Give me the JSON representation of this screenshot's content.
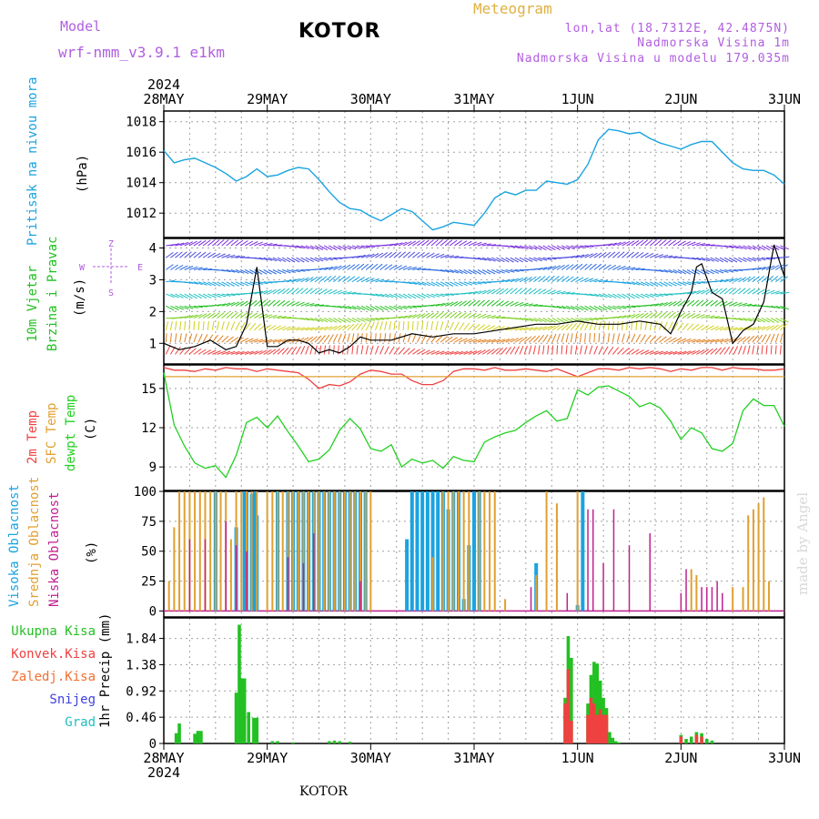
{
  "header": {
    "model_label": "Model",
    "model_name": "wrf-nmm_v3.9.1 e1km",
    "station": "KOTOR",
    "meteogram": "Meteogram",
    "lonlat": "lon,lat (18.7312E, 42.4875N)",
    "elevation": "Nadmorska Visina 1m",
    "model_elevation": "Nadmorska Visina u modelu 179.035m"
  },
  "footer": {
    "station": "KOTOR",
    "credit": "made by Angel"
  },
  "time_axis": {
    "top_year": "2024",
    "bottom_year": "2024",
    "day_labels": [
      "28MAY",
      "29MAY",
      "30MAY",
      "31MAY",
      "1JUN",
      "2JUN",
      "3JUN"
    ]
  },
  "panels": {
    "pressure": {
      "label1": "Pritisak na nivou mora",
      "unit": "(hPa)",
      "ticks": [
        "1012",
        "1014",
        "1016",
        "1018"
      ]
    },
    "wind": {
      "label1": "10m Vjetar",
      "label2": "Brzina i Pravac",
      "unit": "(m/s)",
      "ticks": [
        "1",
        "2",
        "3",
        "4"
      ],
      "compass": {
        "n": "Z",
        "s": "S",
        "w": "W",
        "e": "E"
      }
    },
    "temp": {
      "label1": "2m Temp",
      "label2": "SFC Temp",
      "label3": "dewpt Temp",
      "unit": "(C)",
      "ticks": [
        "9",
        "12",
        "15"
      ]
    },
    "cloud": {
      "label1": "Visoka Oblacnost",
      "label2": "Srednja Oblacnost",
      "label3": "Niska Oblacnost",
      "unit": "(%)",
      "ticks": [
        "0",
        "25",
        "50",
        "75",
        "100"
      ]
    },
    "precip": {
      "legend": [
        "Ukupna Kisa",
        "Konvek.Kisa",
        "Zaledj.Kisa",
        "Snijeg",
        "Grad"
      ],
      "unit": "1hr Precip (mm)",
      "ticks": [
        "0",
        "0.46",
        "0.92",
        "1.38",
        "1.84"
      ]
    }
  },
  "colors": {
    "model": "#b05ee0",
    "meteogram": "#e0b040",
    "info": "#b05ee0",
    "pressure": "#1aa3e0",
    "wind_speed": "#000000",
    "wind_label": "#22c022",
    "temp2m": "#f04040",
    "sfc_temp": "#e0a030",
    "dewpt": "#22d022",
    "cloud_high": "#1aa3e0",
    "cloud_mid": "#e0a030",
    "cloud_low": "#c02090",
    "precip_total": "#22c022",
    "precip_conv": "#f04040",
    "precip_frozen": "#f07030",
    "precip_snow": "#4040e0",
    "precip_hail": "#20c0c0"
  },
  "chart_data": [
    {
      "type": "line",
      "name": "pressure",
      "x_days": [
        0,
        0.1,
        0.2,
        0.3,
        0.4,
        0.5,
        0.6,
        0.7,
        0.8,
        0.9,
        1.0,
        1.1,
        1.2,
        1.3,
        1.4,
        1.5,
        1.6,
        1.7,
        1.8,
        1.9,
        2.0,
        2.1,
        2.2,
        2.3,
        2.4,
        2.5,
        2.6,
        2.7,
        2.8,
        2.9,
        3.0,
        3.1,
        3.2,
        3.3,
        3.4,
        3.5,
        3.6,
        3.7,
        3.8,
        3.9,
        4.0,
        4.1,
        4.2,
        4.3,
        4.4,
        4.5,
        4.6,
        4.7,
        4.8,
        4.9,
        5.0,
        5.1,
        5.2,
        5.3,
        5.4,
        5.5,
        5.6,
        5.7,
        5.8,
        5.9,
        6.0
      ],
      "y": [
        1016.1,
        1015.3,
        1015.5,
        1015.6,
        1015.3,
        1015.0,
        1014.6,
        1014.1,
        1014.4,
        1014.9,
        1014.4,
        1014.5,
        1014.8,
        1015.0,
        1014.9,
        1014.2,
        1013.4,
        1012.7,
        1012.3,
        1012.2,
        1011.8,
        1011.5,
        1011.9,
        1012.3,
        1012.1,
        1011.5,
        1010.9,
        1011.1,
        1011.4,
        1011.3,
        1011.2,
        1012.0,
        1013.0,
        1013.4,
        1013.2,
        1013.5,
        1013.5,
        1014.1,
        1014.0,
        1013.9,
        1014.2,
        1015.2,
        1016.8,
        1017.5,
        1017.4,
        1017.2,
        1017.3,
        1016.9,
        1016.6,
        1016.4,
        1016.2,
        1016.5,
        1016.7,
        1016.7,
        1016.0,
        1015.3,
        1014.9,
        1014.8,
        1014.8,
        1014.5,
        1013.9
      ],
      "ylim": [
        1010.4,
        1018.7
      ],
      "grid": true
    },
    {
      "type": "line",
      "name": "wind_speed",
      "x_days": [
        0,
        0.15,
        0.3,
        0.45,
        0.6,
        0.7,
        0.8,
        0.9,
        1.0,
        1.1,
        1.2,
        1.3,
        1.4,
        1.5,
        1.6,
        1.7,
        1.8,
        1.9,
        2.0,
        2.2,
        2.4,
        2.6,
        2.8,
        3.0,
        3.2,
        3.4,
        3.6,
        3.8,
        4.0,
        4.2,
        4.4,
        4.6,
        4.8,
        4.9,
        5.0,
        5.1,
        5.15,
        5.2,
        5.3,
        5.4,
        5.5,
        5.6,
        5.7,
        5.8,
        5.9,
        6.0
      ],
      "y": [
        1.0,
        0.8,
        0.9,
        1.1,
        0.8,
        0.9,
        1.6,
        3.4,
        0.9,
        0.9,
        1.1,
        1.1,
        1.0,
        0.7,
        0.8,
        0.7,
        0.9,
        1.2,
        1.1,
        1.1,
        1.3,
        1.2,
        1.3,
        1.3,
        1.4,
        1.5,
        1.6,
        1.6,
        1.7,
        1.6,
        1.6,
        1.7,
        1.6,
        1.3,
        2.0,
        2.6,
        3.4,
        3.5,
        2.6,
        2.4,
        1.0,
        1.4,
        1.6,
        2.3,
        4.1,
        3.1
      ],
      "ylim": [
        0.35,
        4.3
      ],
      "grid": true
    },
    {
      "type": "line",
      "name": "temperature",
      "x_days": [
        0,
        0.1,
        0.2,
        0.3,
        0.4,
        0.5,
        0.6,
        0.7,
        0.8,
        0.9,
        1.0,
        1.1,
        1.2,
        1.3,
        1.4,
        1.5,
        1.6,
        1.7,
        1.8,
        1.9,
        2.0,
        2.1,
        2.2,
        2.3,
        2.4,
        2.5,
        2.6,
        2.7,
        2.8,
        2.9,
        3.0,
        3.1,
        3.2,
        3.3,
        3.4,
        3.5,
        3.6,
        3.7,
        3.8,
        3.9,
        4.0,
        4.1,
        4.2,
        4.3,
        4.4,
        4.5,
        4.6,
        4.7,
        4.8,
        4.9,
        5.0,
        5.1,
        5.2,
        5.3,
        5.4,
        5.5,
        5.6,
        5.7,
        5.8,
        5.9,
        6.0
      ],
      "series": [
        {
          "name": "2m Temp",
          "y": [
            16.6,
            16.4,
            16.4,
            16.3,
            16.5,
            16.4,
            16.6,
            16.5,
            16.5,
            16.3,
            16.5,
            16.4,
            16.3,
            16.2,
            15.7,
            15.0,
            15.3,
            15.2,
            15.5,
            16.1,
            16.4,
            16.3,
            16.1,
            16.1,
            15.6,
            15.3,
            15.3,
            15.6,
            16.3,
            16.5,
            16.5,
            16.4,
            16.6,
            16.4,
            16.4,
            16.5,
            16.4,
            16.3,
            16.5,
            16.2,
            15.9,
            16.2,
            16.5,
            16.5,
            16.4,
            16.6,
            16.5,
            16.6,
            16.5,
            16.3,
            16.5,
            16.4,
            16.6,
            16.6,
            16.4,
            16.6,
            16.5,
            16.5,
            16.4,
            16.4,
            16.5
          ]
        },
        {
          "name": "SFC Temp",
          "y": [
            15.9,
            15.9,
            15.9,
            15.9,
            15.9,
            15.9,
            15.9,
            15.9,
            15.9,
            15.9,
            15.9,
            15.9,
            15.9,
            15.9,
            15.9,
            15.9,
            15.9,
            15.9,
            15.9,
            15.9,
            15.9,
            15.9,
            15.9,
            15.9,
            15.9,
            15.9,
            15.9,
            15.9,
            15.9,
            15.9,
            15.9,
            15.9,
            15.9,
            15.9,
            15.9,
            15.9,
            15.9,
            15.9,
            15.9,
            15.9,
            15.9,
            15.9,
            15.9,
            15.9,
            15.9,
            15.9,
            15.9,
            15.9,
            15.9,
            15.9,
            15.9,
            15.9,
            15.9,
            15.9,
            15.9,
            15.9,
            15.9,
            15.9,
            15.9,
            15.9,
            15.9
          ]
        },
        {
          "name": "dewpt Temp",
          "y": [
            16.2,
            12.2,
            10.6,
            9.3,
            8.9,
            9.1,
            8.2,
            9.9,
            12.4,
            12.8,
            12.0,
            12.9,
            11.7,
            10.6,
            9.4,
            9.6,
            10.3,
            11.8,
            12.7,
            11.9,
            10.4,
            10.2,
            10.7,
            9.0,
            9.6,
            9.3,
            9.5,
            8.9,
            9.8,
            9.5,
            9.4,
            10.9,
            11.3,
            11.6,
            11.8,
            12.4,
            12.9,
            13.3,
            12.5,
            12.7,
            14.9,
            14.5,
            15.1,
            15.2,
            14.8,
            14.4,
            13.6,
            13.9,
            13.5,
            12.5,
            11.1,
            12.0,
            11.6,
            10.4,
            10.2,
            10.8,
            13.3,
            14.2,
            13.7,
            13.7,
            12.1
          ]
        }
      ],
      "ylim": [
        7.2,
        16.8
      ],
      "grid": true
    },
    {
      "type": "bar",
      "name": "cloud_cover",
      "series": [
        {
          "name": "Visoka Oblacnost",
          "x_days": [
            0.5,
            0.7,
            0.78,
            0.8,
            0.85,
            0.88,
            0.9,
            1.1,
            1.2,
            1.25,
            1.3,
            1.35,
            1.4,
            1.45,
            1.5,
            1.55,
            1.6,
            1.65,
            1.7,
            1.75,
            1.8,
            1.85,
            1.9,
            1.95,
            2.35,
            2.4,
            2.45,
            2.5,
            2.55,
            2.6,
            2.65,
            2.7,
            2.75,
            2.8,
            2.85,
            2.9,
            2.95,
            3.0,
            3.05,
            3.6,
            4.0,
            4.05
          ],
          "y": [
            100,
            70,
            100,
            100,
            98,
            100,
            80,
            100,
            100,
            100,
            100,
            100,
            100,
            100,
            100,
            100,
            100,
            100,
            100,
            100,
            100,
            100,
            100,
            100,
            60,
            100,
            100,
            100,
            100,
            100,
            100,
            100,
            85,
            100,
            100,
            10,
            55,
            100,
            100,
            40,
            5,
            100
          ]
        },
        {
          "name": "Srednja Oblacnost",
          "x_days": [
            0.05,
            0.1,
            0.15,
            0.2,
            0.25,
            0.3,
            0.35,
            0.4,
            0.45,
            0.5,
            0.55,
            0.6,
            0.65,
            0.7,
            0.75,
            0.8,
            0.85,
            0.9,
            1.0,
            1.05,
            1.1,
            1.15,
            1.2,
            1.25,
            1.3,
            1.35,
            1.4,
            1.45,
            1.5,
            1.55,
            1.6,
            1.65,
            1.7,
            1.75,
            1.8,
            1.85,
            1.9,
            1.95,
            2.0,
            2.6,
            2.7,
            2.75,
            2.8,
            2.85,
            2.9,
            2.95,
            3.05,
            3.1,
            3.15,
            3.2,
            3.3,
            3.6,
            3.7,
            3.8,
            4.0,
            5.1,
            5.15,
            5.5,
            5.6,
            5.65,
            5.7,
            5.75,
            5.8,
            5.85
          ],
          "y": [
            25,
            70,
            100,
            100,
            100,
            100,
            100,
            100,
            100,
            100,
            100,
            100,
            60,
            100,
            100,
            100,
            100,
            100,
            100,
            100,
            100,
            100,
            100,
            100,
            100,
            100,
            100,
            100,
            100,
            100,
            100,
            100,
            100,
            100,
            100,
            100,
            100,
            100,
            100,
            45,
            100,
            100,
            100,
            100,
            100,
            100,
            100,
            100,
            100,
            100,
            10,
            30,
            100,
            90,
            100,
            35,
            30,
            20,
            20,
            80,
            85,
            90,
            95,
            25
          ]
        },
        {
          "name": "Niska Oblacnost",
          "x_days": [
            0.25,
            0.4,
            0.6,
            0.7,
            0.8,
            1.2,
            1.35,
            1.45,
            1.9,
            3.55,
            3.9,
            4.1,
            4.15,
            4.25,
            4.35,
            4.5,
            4.7,
            5.0,
            5.05,
            5.2,
            5.25,
            5.3,
            5.35,
            5.4
          ],
          "y": [
            60,
            60,
            75,
            55,
            50,
            45,
            40,
            65,
            25,
            20,
            15,
            85,
            85,
            40,
            85,
            55,
            65,
            15,
            35,
            20,
            20,
            20,
            25,
            15
          ]
        }
      ],
      "ylim": [
        -5,
        100
      ],
      "grid": true
    },
    {
      "type": "bar",
      "name": "precipitation",
      "series": [
        {
          "name": "Ukupna Kisa",
          "x_days": [
            0.12,
            0.15,
            0.3,
            0.33,
            0.36,
            0.7,
            0.73,
            0.75,
            0.78,
            0.82,
            0.87,
            0.9,
            1.05,
            1.1,
            1.25,
            1.6,
            1.65,
            1.7,
            1.8,
            3.88,
            3.91,
            3.94,
            4.1,
            4.13,
            4.16,
            4.19,
            4.22,
            4.25,
            4.28,
            4.31,
            4.34,
            4.37,
            4.4,
            5.0,
            5.05,
            5.1,
            5.15,
            5.2,
            5.25,
            5.3
          ],
          "y": [
            0.18,
            0.35,
            0.17,
            0.22,
            0.22,
            0.89,
            2.08,
            1.14,
            1.14,
            0.55,
            0.45,
            0.45,
            0.04,
            0.04,
            0.02,
            0.04,
            0.05,
            0.04,
            0.03,
            0.8,
            1.88,
            1.5,
            0.7,
            1.2,
            1.43,
            1.4,
            1.1,
            0.8,
            0.62,
            0.2,
            0.1,
            0.04,
            0.02,
            0.15,
            0.08,
            0.12,
            0.2,
            0.18,
            0.08,
            0.05
          ]
        },
        {
          "name": "Konvek.Kisa",
          "x_days": [
            3.88,
            3.91,
            3.94,
            4.1,
            4.13,
            4.16,
            4.19,
            4.22,
            4.25,
            4.28,
            5.0,
            5.15,
            5.2
          ],
          "y": [
            0.7,
            1.3,
            0.4,
            0.5,
            0.8,
            0.7,
            0.5,
            0.6,
            0.5,
            0.5,
            0.12,
            0.15,
            0.12
          ]
        }
      ],
      "ylim": [
        0,
        2.2
      ],
      "grid": true
    }
  ]
}
